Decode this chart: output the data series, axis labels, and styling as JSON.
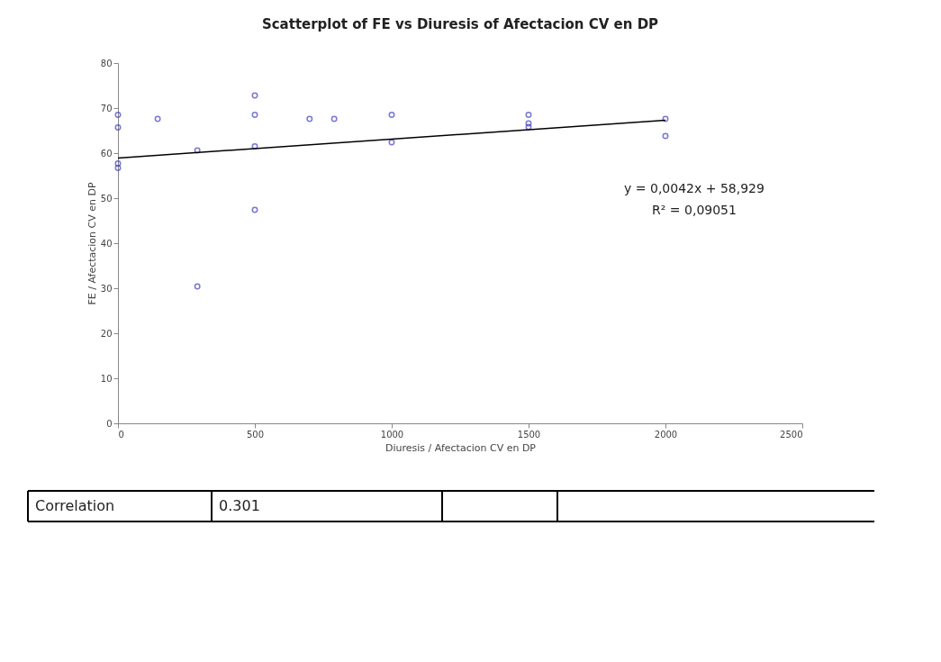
{
  "chart_data": {
    "type": "scatter",
    "title": "Scatterplot of FE vs Diuresis of Afectacion CV en DP",
    "xlabel": "Diuresis / Afectacion CV en DP",
    "ylabel": "FE / Afectacion CV en DP",
    "xlim": [
      0,
      2500
    ],
    "xticks": [
      0,
      500,
      1000,
      1500,
      2000,
      2500
    ],
    "ylim": [
      0,
      80
    ],
    "yticks": [
      0,
      10,
      20,
      30,
      40,
      50,
      60,
      70,
      80
    ],
    "grid": false,
    "series": [
      {
        "marker": "circle",
        "color": "#3f3fbf",
        "x": [
          0,
          0,
          0,
          0,
          145,
          290,
          290,
          500,
          500,
          500,
          500,
          700,
          790,
          1000,
          1000,
          1500,
          1500,
          1500,
          2000,
          2000
        ],
        "values": [
          68.5,
          65.7,
          57.7,
          56.7,
          67.6,
          60.6,
          30.4,
          72.8,
          68.5,
          61.5,
          47.4,
          67.6,
          67.6,
          68.5,
          62.4,
          68.5,
          66.6,
          65.8,
          67.6,
          63.8
        ]
      },
      {
        "type": "line",
        "color": "#000000",
        "x": [
          0,
          2000
        ],
        "values": [
          58.9,
          67.3
        ]
      }
    ],
    "annotations": [
      "y = 0,0042x + 58,929",
      "R² = 0,09051",
      "Correlation",
      "0.301"
    ]
  }
}
